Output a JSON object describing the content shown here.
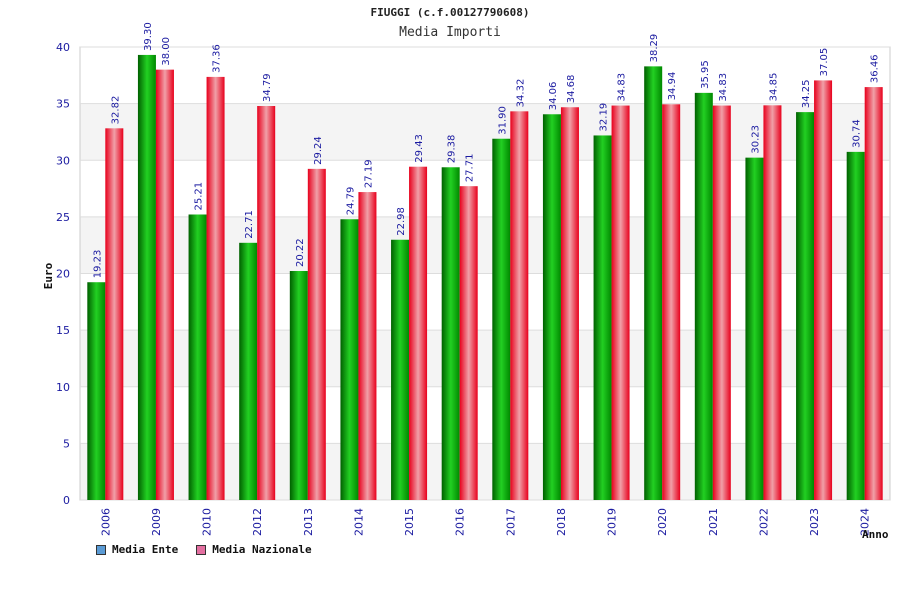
{
  "chart_data": {
    "type": "bar",
    "title": "FIUGGI (c.f.00127790608)",
    "subtitle": "Media Importi",
    "xlabel": "Anno",
    "ylabel": "Euro",
    "ylim": [
      0,
      40
    ],
    "yticks": [
      0,
      5,
      10,
      15,
      20,
      25,
      30,
      35,
      40
    ],
    "grid": true,
    "legend_position": "bottom-left",
    "categories": [
      "2006",
      "2009",
      "2010",
      "2012",
      "2013",
      "2014",
      "2015",
      "2016",
      "2017",
      "2018",
      "2019",
      "2020",
      "2021",
      "2022",
      "2023",
      "2024"
    ],
    "series": [
      {
        "name": "Media Ente",
        "color": "#00b000",
        "value_labels": [
          "19.23",
          "39.30",
          "25.21",
          "22.71",
          "20.22",
          "24.79",
          "22.98",
          "29.38",
          "31.90",
          "34.06",
          "32.19",
          "38.29",
          "35.95",
          "30.23",
          "34.25",
          "30.74"
        ],
        "values": [
          19.23,
          39.3,
          25.21,
          22.71,
          20.22,
          24.79,
          22.98,
          29.38,
          31.9,
          34.06,
          32.19,
          38.29,
          35.95,
          30.23,
          34.25,
          30.74
        ]
      },
      {
        "name": "Media Nazionale",
        "color": "#e8001c",
        "value_labels": [
          "32.82",
          "38.00",
          "37.36",
          "34.79",
          "29.24",
          "27.19",
          "29.43",
          "27.71",
          "34.32",
          "34.68",
          "34.83",
          "34.94",
          "34.83",
          "34.85",
          "37.05",
          "36.46"
        ],
        "values": [
          32.82,
          38.0,
          37.36,
          34.79,
          29.24,
          27.19,
          29.43,
          27.71,
          34.32,
          34.68,
          34.83,
          34.94,
          34.83,
          34.85,
          37.05,
          36.46
        ]
      }
    ],
    "legend_swatch_colors": [
      "#5b9bd5",
      "#e36fa0"
    ]
  }
}
